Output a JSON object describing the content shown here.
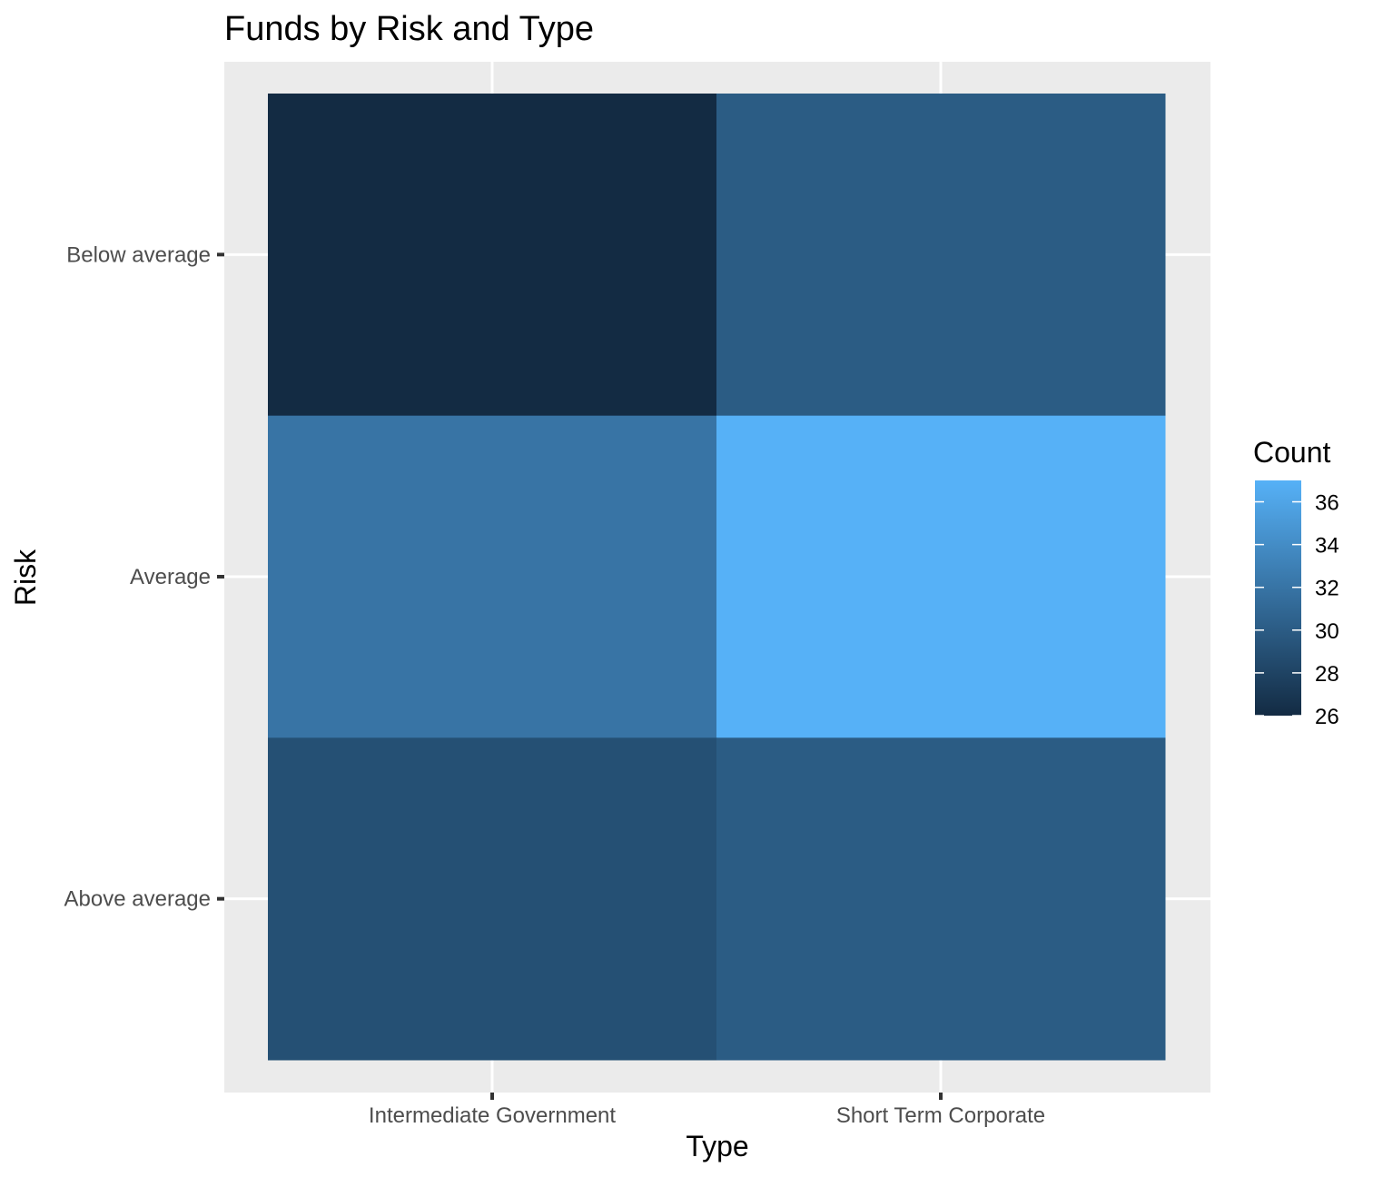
{
  "chart_data": {
    "type": "heatmap",
    "title": "Funds by Risk and Type",
    "xlabel": "Type",
    "ylabel": "Risk",
    "x_categories": [
      "Intermediate Government",
      "Short Term Corporate"
    ],
    "y_categories": [
      "Below average",
      "Average",
      "Above average"
    ],
    "values": [
      [
        26,
        30
      ],
      [
        32,
        37
      ],
      [
        29,
        30
      ]
    ],
    "legend": {
      "title": "Count",
      "ticks": [
        26,
        28,
        30,
        32,
        34,
        36
      ],
      "range": [
        26,
        37
      ],
      "low_color": "#132b43",
      "high_color": "#56b1f7",
      "placement": "right"
    },
    "colors": {
      "panel_background": "#ebebeb",
      "grid": "#ffffff"
    }
  }
}
